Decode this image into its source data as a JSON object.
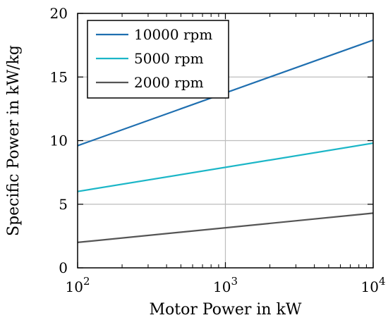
{
  "chart_data": {
    "type": "line",
    "xlabel": "Motor Power in kW",
    "ylabel": "Specific Power in kW/kg",
    "x_scale": "log",
    "xlim": [
      100,
      10000
    ],
    "ylim": [
      0,
      20
    ],
    "grid": true,
    "legend_position": "top-left",
    "y_ticks": [
      0,
      5,
      10,
      15,
      20
    ],
    "x_ticks": [
      {
        "base": "10",
        "exp": "2"
      },
      {
        "base": "10",
        "exp": "3"
      },
      {
        "base": "10",
        "exp": "4"
      }
    ],
    "x_tick_values": [
      100,
      1000,
      10000
    ],
    "series": [
      {
        "name": "10000 rpm",
        "color": "#1f6fb0",
        "x": [
          100,
          10000
        ],
        "y": [
          9.6,
          17.9
        ]
      },
      {
        "name": "5000 rpm",
        "color": "#1bb6c7",
        "x": [
          100,
          10000
        ],
        "y": [
          6.0,
          9.8
        ]
      },
      {
        "name": "2000 rpm",
        "color": "#555555",
        "x": [
          100,
          10000
        ],
        "y": [
          2.0,
          4.3
        ]
      }
    ]
  }
}
